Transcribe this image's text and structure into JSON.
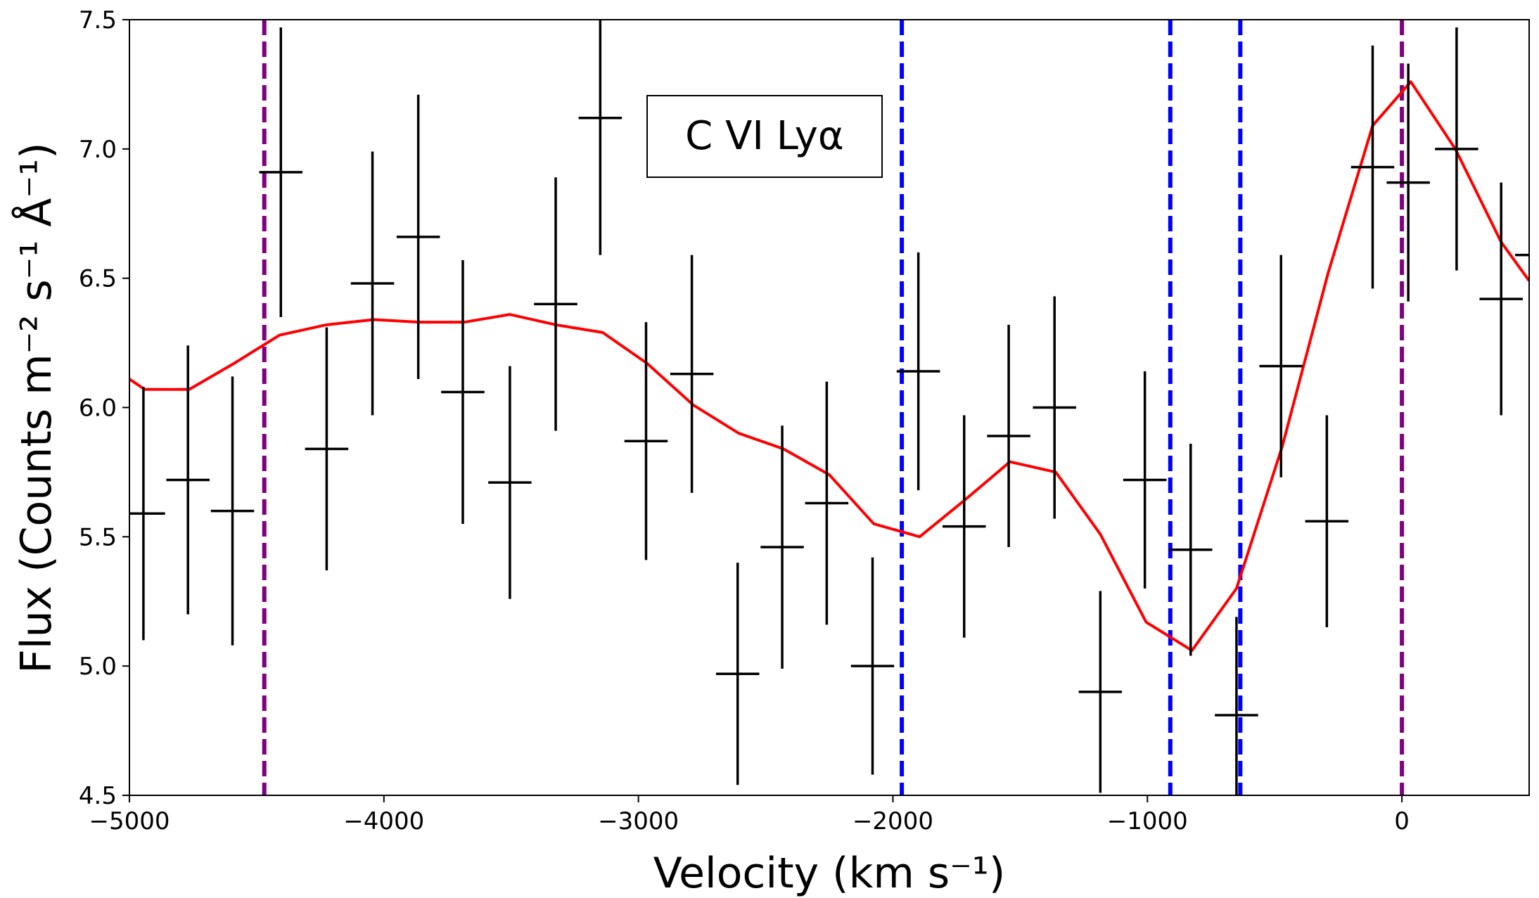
{
  "chart_data": {
    "type": "line",
    "title": "",
    "xlabel": "Velocity (km s⁻¹)",
    "ylabel": "Flux (Counts m⁻² s⁻¹ Å⁻¹)",
    "xlim": [
      -5000,
      500
    ],
    "ylim": [
      4.5,
      7.5
    ],
    "xticks": [
      -5000,
      -4000,
      -3000,
      -2000,
      -1000,
      0
    ],
    "xtick_labels": [
      "−5000",
      "−4000",
      "−3000",
      "−2000",
      "−1000",
      "0"
    ],
    "yticks": [
      4.5,
      5.0,
      5.5,
      6.0,
      6.5,
      7.0,
      7.5
    ],
    "ytick_labels": [
      "4.5",
      "5.0",
      "5.5",
      "6.0",
      "6.5",
      "7.0",
      "7.5"
    ],
    "annotation": "C VI Lyα",
    "colors": {
      "data": "#000000",
      "model": "#ff0000",
      "outer_lines": "#800080",
      "inner_lines": "#0000ff"
    },
    "reference_lines": [
      {
        "name": "outer",
        "x": -4470,
        "color": "#800080"
      },
      {
        "name": "outer",
        "x": 0,
        "color": "#800080"
      },
      {
        "name": "inner",
        "x": -1965,
        "color": "#0000ff"
      },
      {
        "name": "inner",
        "x": -910,
        "color": "#0000ff"
      },
      {
        "name": "inner",
        "x": -635,
        "color": "#0000ff"
      }
    ],
    "series": [
      {
        "name": "data",
        "kind": "errorbar",
        "points": [
          {
            "x": -4945,
            "y": 5.59,
            "yerr": 0.49,
            "xerr": 85
          },
          {
            "x": -4770,
            "y": 5.72,
            "yerr": 0.52,
            "xerr": 85
          },
          {
            "x": -4595,
            "y": 5.6,
            "yerr": 0.52,
            "xerr": 85
          },
          {
            "x": -4405,
            "y": 6.91,
            "yerr": 0.56,
            "xerr": 85
          },
          {
            "x": -4225,
            "y": 5.84,
            "yerr": 0.47,
            "xerr": 85
          },
          {
            "x": -4045,
            "y": 6.48,
            "yerr": 0.51,
            "xerr": 85
          },
          {
            "x": -3865,
            "y": 6.66,
            "yerr": 0.55,
            "xerr": 85
          },
          {
            "x": -3690,
            "y": 6.06,
            "yerr": 0.51,
            "xerr": 85
          },
          {
            "x": -3505,
            "y": 5.71,
            "yerr": 0.45,
            "xerr": 85
          },
          {
            "x": -3325,
            "y": 6.4,
            "yerr": 0.49,
            "xerr": 85
          },
          {
            "x": -3150,
            "y": 7.12,
            "yerr": 0.53,
            "xerr": 85
          },
          {
            "x": -2970,
            "y": 5.87,
            "yerr": 0.46,
            "xerr": 85
          },
          {
            "x": -2790,
            "y": 6.13,
            "yerr": 0.46,
            "xerr": 85
          },
          {
            "x": -2610,
            "y": 4.97,
            "yerr": 0.43,
            "xerr": 85
          },
          {
            "x": -2435,
            "y": 5.46,
            "yerr": 0.47,
            "xerr": 85
          },
          {
            "x": -2260,
            "y": 5.63,
            "yerr": 0.47,
            "xerr": 85
          },
          {
            "x": -2080,
            "y": 5.0,
            "yerr": 0.42,
            "xerr": 85
          },
          {
            "x": -1900,
            "y": 6.14,
            "yerr": 0.46,
            "xerr": 85
          },
          {
            "x": -1720,
            "y": 5.54,
            "yerr": 0.43,
            "xerr": 85
          },
          {
            "x": -1545,
            "y": 5.89,
            "yerr": 0.43,
            "xerr": 85
          },
          {
            "x": -1365,
            "y": 6.0,
            "yerr": 0.43,
            "xerr": 85
          },
          {
            "x": -1185,
            "y": 4.9,
            "yerr": 0.39,
            "xerr": 85
          },
          {
            "x": -1010,
            "y": 5.72,
            "yerr": 0.42,
            "xerr": 85
          },
          {
            "x": -830,
            "y": 5.45,
            "yerr": 0.41,
            "xerr": 85
          },
          {
            "x": -650,
            "y": 4.81,
            "yerr": 0.38,
            "xerr": 85
          },
          {
            "x": -475,
            "y": 6.16,
            "yerr": 0.43,
            "xerr": 85
          },
          {
            "x": -295,
            "y": 5.56,
            "yerr": 0.41,
            "xerr": 85
          },
          {
            "x": -115,
            "y": 6.93,
            "yerr": 0.47,
            "xerr": 85
          },
          {
            "x": 25,
            "y": 6.87,
            "yerr": 0.46,
            "xerr": 85
          },
          {
            "x": 215,
            "y": 7.0,
            "yerr": 0.47,
            "xerr": 85
          },
          {
            "x": 390,
            "y": 6.42,
            "yerr": 0.45,
            "xerr": 85
          },
          {
            "x": 530,
            "y": 6.59,
            "yerr": 0.45,
            "xerr": 85
          }
        ]
      },
      {
        "name": "model",
        "kind": "line",
        "x": [
          -5000,
          -4940,
          -4765,
          -4590,
          -4410,
          -4225,
          -4040,
          -3860,
          -3685,
          -3505,
          -3325,
          -3140,
          -2965,
          -2785,
          -2605,
          -2430,
          -2250,
          -2075,
          -1895,
          -1720,
          -1540,
          -1360,
          -1185,
          -1005,
          -825,
          -650,
          -470,
          -290,
          -115,
          35,
          210,
          390,
          500
        ],
        "y": [
          6.11,
          6.07,
          6.07,
          6.17,
          6.28,
          6.32,
          6.34,
          6.33,
          6.33,
          6.36,
          6.32,
          6.29,
          6.17,
          6.01,
          5.9,
          5.84,
          5.74,
          5.55,
          5.5,
          5.64,
          5.79,
          5.75,
          5.51,
          5.17,
          5.06,
          5.3,
          5.85,
          6.52,
          7.09,
          7.26,
          7.0,
          6.64,
          6.49
        ]
      }
    ]
  }
}
